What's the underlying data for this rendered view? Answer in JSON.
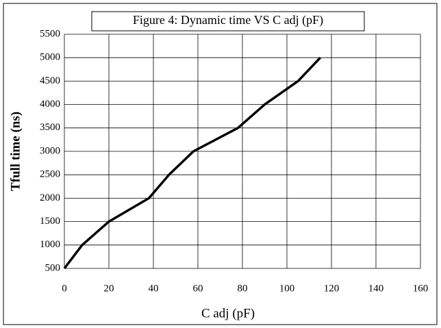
{
  "chart_data": {
    "type": "line",
    "title": "Figure 4: Dynamic time VS C adj (pF)",
    "x_label": "C adj (pF)",
    "y_label": "Tfull time (ns)",
    "x": [
      0,
      8,
      20,
      38,
      47,
      58,
      78,
      90,
      105,
      115
    ],
    "series": [
      {
        "name": "Tfull time",
        "color": "#000000",
        "values": [
          500,
          1000,
          1500,
          2000,
          2500,
          3000,
          3500,
          4000,
          4500,
          5000
        ]
      }
    ],
    "xlim": [
      0,
      160
    ],
    "xticks": [
      0,
      20,
      40,
      60,
      80,
      100,
      120,
      140,
      160
    ],
    "ylim": [
      500,
      5500
    ],
    "yticks": [
      500,
      1000,
      1500,
      2000,
      2500,
      3000,
      3500,
      4000,
      4500,
      5000,
      5500
    ],
    "grid": true
  }
}
